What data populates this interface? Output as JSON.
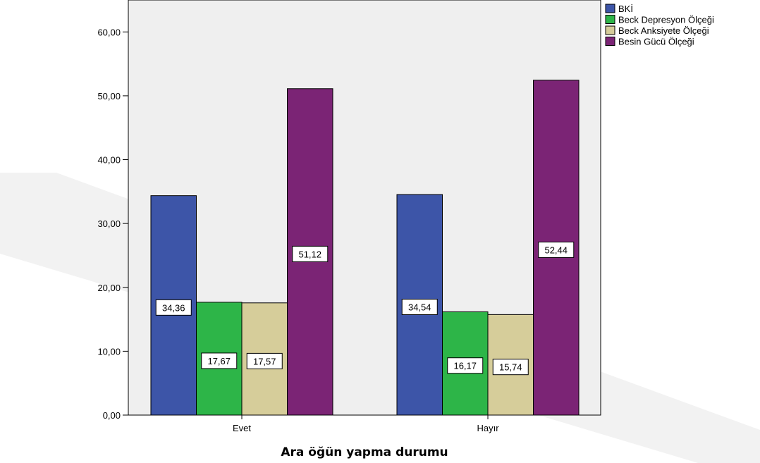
{
  "chart_data": {
    "type": "bar",
    "title": "",
    "xlabel": "Ara öğün yapma durumu",
    "ylabel": "",
    "ylim": [
      0,
      65
    ],
    "yticks": [
      "0,00",
      "10,00",
      "20,00",
      "30,00",
      "40,00",
      "50,00",
      "60,00"
    ],
    "grid": false,
    "legend_position": "top-right",
    "categories": [
      "Evet",
      "Hayır"
    ],
    "series": [
      {
        "name": "BKİ",
        "color": "#3d55a8",
        "values": [
          34.36,
          34.54
        ],
        "labels": [
          "34,36",
          "34,54"
        ]
      },
      {
        "name": "Beck Depresyon Ölçeği",
        "color": "#2db548",
        "values": [
          17.67,
          16.17
        ],
        "labels": [
          "17,67",
          "16,17"
        ]
      },
      {
        "name": "Beck Anksiyete Ölçeği",
        "color": "#d6cd9a",
        "values": [
          17.57,
          15.74
        ],
        "labels": [
          "17,57",
          "15,74"
        ]
      },
      {
        "name": "Besin Gücü Ölçeği",
        "color": "#7b2475",
        "values": [
          51.12,
          52.44
        ],
        "labels": [
          "51,12",
          "52,44"
        ]
      }
    ]
  }
}
